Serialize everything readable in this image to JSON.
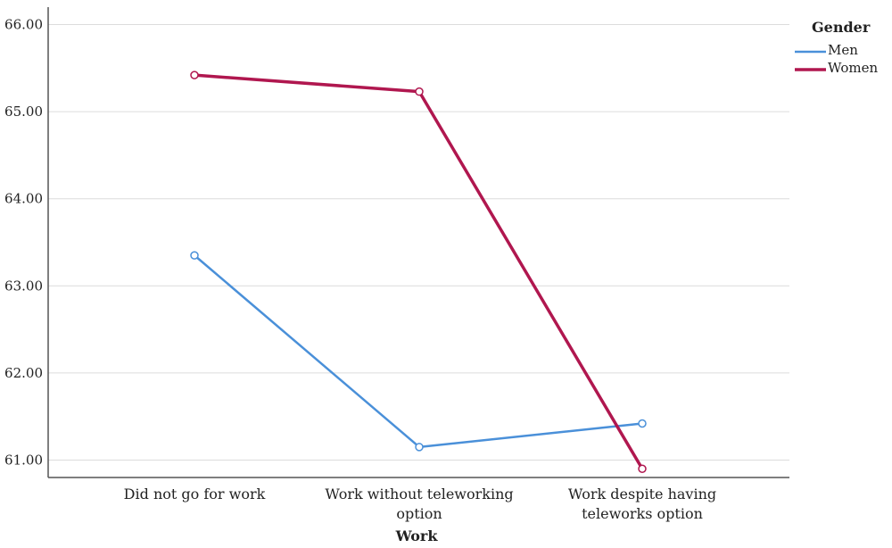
{
  "chart_data": {
    "type": "line",
    "title": "",
    "xlabel": "Work",
    "ylabel": "",
    "categories": [
      [
        "Did not go for work"
      ],
      [
        "Work without teleworking",
        "option"
      ],
      [
        "Work despite having",
        "teleworks option"
      ]
    ],
    "ylim": [
      60.8,
      66.2
    ],
    "yticks": [
      61.0,
      62.0,
      63.0,
      64.0,
      65.0,
      66.0
    ],
    "ytick_labels": [
      "61.00",
      "62.00",
      "63.00",
      "64.00",
      "65.00",
      "66.00"
    ],
    "grid": true,
    "legend": {
      "title": "Gender",
      "placement": "top-right"
    },
    "series": [
      {
        "name": "Men",
        "values": [
          63.35,
          61.15,
          61.42
        ],
        "color": "#4a90d9"
      },
      {
        "name": "Women",
        "values": [
          65.42,
          65.23,
          60.9
        ],
        "color": "#b0174f"
      }
    ]
  }
}
